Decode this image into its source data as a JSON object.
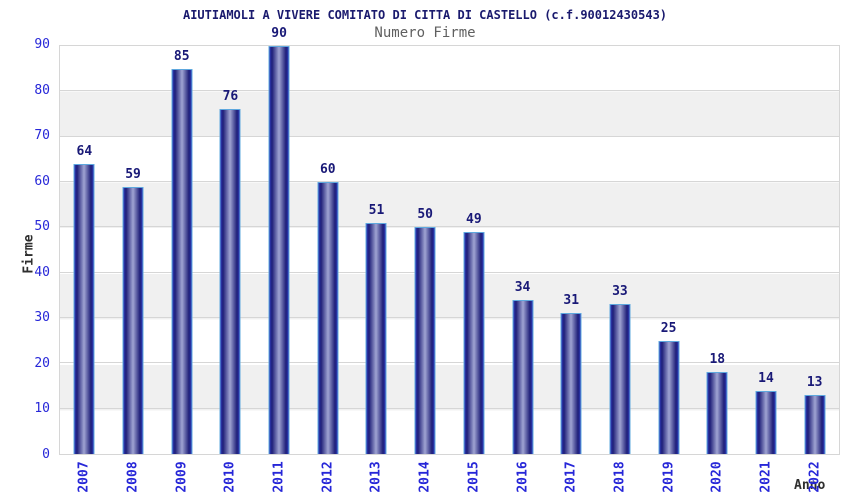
{
  "header": {
    "title": "AIUTIAMOLI A VIVERE COMITATO DI CITTA DI CASTELLO (c.f.90012430543)",
    "subtitle": "Numero Firme"
  },
  "chart_data": {
    "type": "bar",
    "title": "AIUTIAMOLI A VIVERE COMITATO DI CITTA DI CASTELLO (c.f.90012430543)",
    "subtitle": "Numero Firme",
    "categories": [
      "2007",
      "2008",
      "2009",
      "2010",
      "2011",
      "2012",
      "2013",
      "2014",
      "2015",
      "2016",
      "2017",
      "2018",
      "2019",
      "2020",
      "2021",
      "2022"
    ],
    "values": [
      64,
      59,
      85,
      76,
      90,
      60,
      51,
      50,
      49,
      34,
      31,
      33,
      25,
      18,
      14,
      13
    ],
    "xlabel": "Anno",
    "ylabel": "Firme",
    "ylim": [
      0,
      90
    ],
    "yticks": [
      0,
      10,
      20,
      30,
      40,
      50,
      60,
      70,
      80,
      90
    ],
    "grid": true,
    "legend": false,
    "background_bands": "alternating white / light gray every 10 units",
    "value_labels": "shown above each bar"
  },
  "colors": {
    "title": "#1a1a6e",
    "subtitle": "#606060",
    "tick_label": "#2727d8",
    "value_label": "#191977",
    "axis_title": "#2e2e2e",
    "band": "#f0f0f0",
    "grid": "#d6d6d6",
    "bar_border": "#5ea8de",
    "bar_edge": "#2e3cb8",
    "bar_dark": "#1e1e78",
    "bar_center": "#9fa4d2"
  }
}
